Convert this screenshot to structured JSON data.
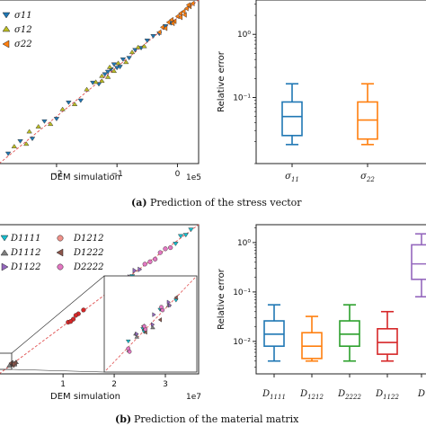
{
  "colors": {
    "blue": "#1f77b4",
    "orange": "#ff7f0e",
    "green": "#2ca02c",
    "red": "#d62728",
    "purple": "#9467bd",
    "gray": "#7f7f7f",
    "olive": "#bcbd22",
    "cyan": "#17becf",
    "pink": "#e377c2",
    "brown": "#8c564b",
    "salmon": "#f0928a"
  },
  "captions": {
    "a_tag": "(a)",
    "a_text": "Prediction of the stress vector",
    "b_tag": "(b)",
    "b_text": "Prediction of the material matrix"
  },
  "chart_data": [
    {
      "id": "a_scatter",
      "type": "scatter",
      "xlabel": "DEM simulation",
      "x_offset_label": "1e5",
      "xticks": [
        {
          "v": -2,
          "label": "−2"
        },
        {
          "v": -1,
          "label": "−1"
        },
        {
          "v": 0,
          "label": "0"
        }
      ],
      "xlim": [
        -2.95,
        0.35
      ],
      "ylim": [
        -2.95,
        0.35
      ],
      "legend": [
        "σ11",
        "σ12",
        "σ22"
      ],
      "reference_line": "y = x",
      "series": [
        {
          "name": "σ11",
          "points": [
            [
              -2.8,
              -2.75
            ],
            [
              -2.6,
              -2.5
            ],
            [
              -2.4,
              -2.45
            ],
            [
              -2.2,
              -2.1
            ],
            [
              -2.0,
              -2.05
            ],
            [
              -1.8,
              -1.72
            ],
            [
              -1.6,
              -1.68
            ],
            [
              -1.4,
              -1.32
            ],
            [
              -1.3,
              -1.35
            ],
            [
              -1.2,
              -1.15
            ],
            [
              -1.1,
              -1.05
            ],
            [
              -1.0,
              -1.02
            ],
            [
              -0.9,
              -0.85
            ],
            [
              -0.8,
              -0.82
            ],
            [
              -0.7,
              -0.66
            ],
            [
              -0.6,
              -0.62
            ],
            [
              -0.5,
              -0.47
            ],
            [
              -0.4,
              -0.38
            ],
            [
              -0.3,
              -0.33
            ],
            [
              -0.2,
              -0.18
            ],
            [
              -0.1,
              -0.12
            ],
            [
              -1.05,
              -0.95
            ],
            [
              -0.95,
              -1.0
            ],
            [
              -1.15,
              -1.1
            ]
          ]
        },
        {
          "name": "σ12",
          "points": [
            [
              -2.7,
              -2.6
            ],
            [
              -2.5,
              -2.55
            ],
            [
              -2.3,
              -2.2
            ],
            [
              -2.1,
              -2.15
            ],
            [
              -1.9,
              -1.85
            ],
            [
              -1.7,
              -1.75
            ],
            [
              -1.5,
              -1.45
            ],
            [
              -1.35,
              -1.3
            ],
            [
              -1.25,
              -1.28
            ],
            [
              -1.15,
              -1.2
            ],
            [
              -1.05,
              -1.08
            ],
            [
              -0.98,
              -0.92
            ],
            [
              -0.85,
              -0.9
            ],
            [
              -0.75,
              -0.7
            ],
            [
              -0.65,
              -0.6
            ],
            [
              -0.55,
              -0.58
            ],
            [
              -1.25,
              -1.18
            ],
            [
              -1.12,
              -1.0
            ],
            [
              -2.45,
              -2.3
            ]
          ]
        },
        {
          "name": "σ22",
          "points": [
            [
              -0.3,
              -0.3
            ],
            [
              -0.25,
              -0.2
            ],
            [
              -0.2,
              -0.22
            ],
            [
              -0.15,
              -0.1
            ],
            [
              -0.1,
              -0.05
            ],
            [
              -0.05,
              -0.08
            ],
            [
              0.0,
              0.02
            ],
            [
              0.05,
              0.08
            ],
            [
              0.1,
              0.12
            ],
            [
              0.15,
              0.18
            ],
            [
              0.2,
              0.22
            ],
            [
              0.25,
              0.28
            ],
            [
              0.05,
              0.0
            ],
            [
              -0.08,
              -0.12
            ],
            [
              0.12,
              0.05
            ],
            [
              0.18,
              0.25
            ]
          ]
        }
      ]
    },
    {
      "id": "a_box",
      "type": "box",
      "ylabel": "Relative error",
      "yscale": "log",
      "ylim": [
        0.009,
        3.5
      ],
      "yticks": [
        {
          "v": 1,
          "label": "10⁰"
        },
        {
          "v": 0.1,
          "label": "10⁻¹"
        }
      ],
      "categories": [
        "σ11",
        "σ22"
      ],
      "boxes": [
        {
          "name": "σ11",
          "whislo": 0.018,
          "q1": 0.025,
          "med": 0.05,
          "q3": 0.085,
          "whishi": 0.165,
          "color": "#1f77b4"
        },
        {
          "name": "σ22",
          "whislo": 0.018,
          "q1": 0.022,
          "med": 0.044,
          "q3": 0.085,
          "whishi": 0.165,
          "color": "#ff7f0e"
        }
      ]
    },
    {
      "id": "b_scatter",
      "type": "scatter",
      "xlabel": "DEM simulation",
      "x_offset_label": "1e7",
      "xticks": [
        {
          "v": 1,
          "label": "1"
        },
        {
          "v": 2,
          "label": "2"
        },
        {
          "v": 3,
          "label": "3"
        }
      ],
      "xlim": [
        -0.25,
        3.65
      ],
      "ylim": [
        -0.25,
        3.65
      ],
      "legend": [
        "D1111",
        "D1212",
        "D1112",
        "D1222",
        "D1122",
        "D2222"
      ],
      "reference_line": "y = x",
      "series": [
        {
          "name": "D1111",
          "points": [
            [
              3.2,
              3.15
            ],
            [
              3.3,
              3.35
            ],
            [
              3.4,
              3.38
            ],
            [
              3.5,
              3.52
            ],
            [
              2.1,
              2.08
            ],
            [
              2.2,
              2.22
            ],
            [
              2.35,
              2.3
            ]
          ]
        },
        {
          "name": "D1212",
          "points": [
            [
              1.1,
              1.1
            ],
            [
              1.2,
              1.18
            ],
            [
              1.3,
              1.32
            ],
            [
              1.4,
              1.42
            ],
            [
              1.25,
              1.28
            ],
            [
              1.15,
              1.12
            ]
          ]
        },
        {
          "name": "D1112",
          "points": [
            [
              0.0,
              0.02
            ],
            [
              0.05,
              0.0
            ],
            [
              -0.05,
              -0.03
            ],
            [
              0.02,
              0.05
            ],
            [
              0.08,
              0.06
            ]
          ]
        },
        {
          "name": "D1222",
          "points": [
            [
              0.01,
              -0.02
            ],
            [
              -0.02,
              0.03
            ],
            [
              0.06,
              0.04
            ],
            [
              0.03,
              0.01
            ]
          ]
        },
        {
          "name": "D1122",
          "points": [
            [
              1.9,
              1.95
            ],
            [
              2.0,
              1.98
            ],
            [
              2.3,
              2.28
            ],
            [
              2.4,
              2.45
            ],
            [
              2.5,
              2.48
            ]
          ]
        },
        {
          "name": "D2222",
          "points": [
            [
              2.6,
              2.62
            ],
            [
              2.8,
              2.75
            ],
            [
              2.9,
              2.92
            ],
            [
              3.0,
              3.02
            ],
            [
              3.1,
              3.05
            ],
            [
              2.7,
              2.68
            ]
          ]
        }
      ]
    },
    {
      "id": "b_box",
      "type": "box",
      "ylabel": "Relative error",
      "yscale": "log",
      "ylim": [
        0.0022,
        2.3
      ],
      "yticks": [
        {
          "v": 1,
          "label": "10⁰"
        },
        {
          "v": 0.1,
          "label": "10⁻¹"
        },
        {
          "v": 0.01,
          "label": "10⁻²"
        }
      ],
      "categories": [
        "D1111",
        "D1212",
        "D2222",
        "D1122",
        "D"
      ],
      "boxes": [
        {
          "name": "D1111",
          "whislo": 0.004,
          "q1": 0.008,
          "med": 0.014,
          "q3": 0.026,
          "whishi": 0.055,
          "color": "#1f77b4"
        },
        {
          "name": "D1212",
          "whislo": 0.004,
          "q1": 0.0045,
          "med": 0.008,
          "q3": 0.015,
          "whishi": 0.032,
          "color": "#ff7f0e"
        },
        {
          "name": "D2222",
          "whislo": 0.004,
          "q1": 0.008,
          "med": 0.014,
          "q3": 0.026,
          "whishi": 0.055,
          "color": "#2ca02c"
        },
        {
          "name": "D1122",
          "whislo": 0.004,
          "q1": 0.0055,
          "med": 0.0095,
          "q3": 0.018,
          "whishi": 0.04,
          "color": "#d62728"
        },
        {
          "name": "D",
          "whislo": 0.08,
          "q1": 0.18,
          "med": 0.37,
          "q3": 0.9,
          "whishi": 1.5,
          "color": "#9467bd"
        }
      ]
    }
  ]
}
